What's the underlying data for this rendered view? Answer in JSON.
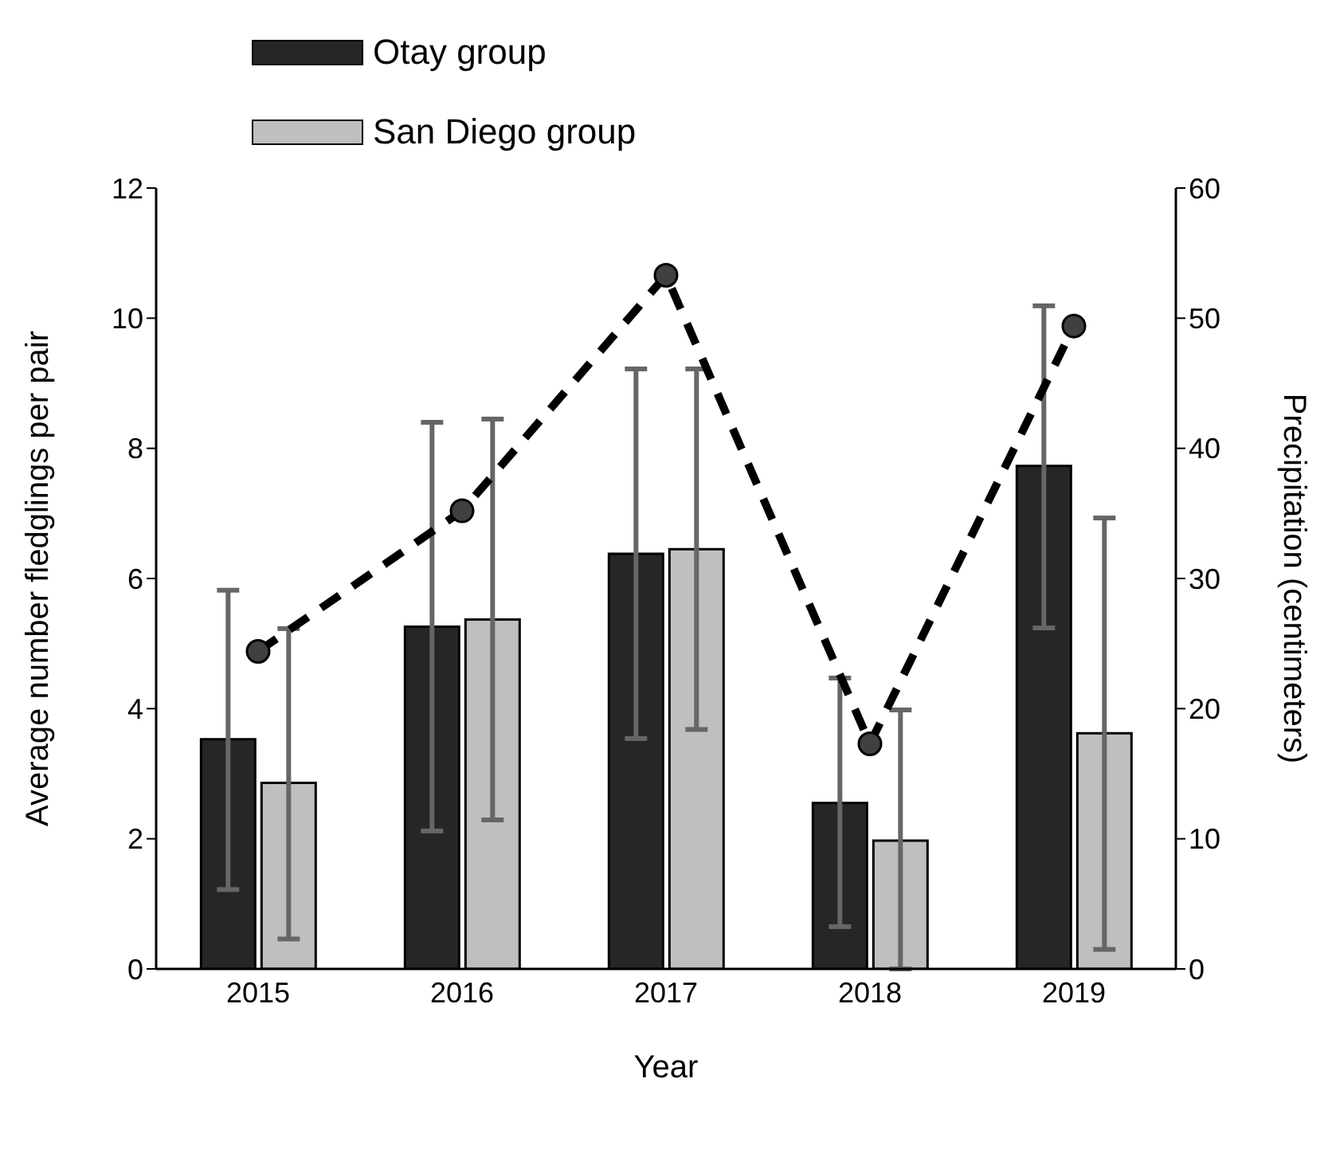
{
  "chart_data": {
    "type": "bar",
    "xlabel": "Year",
    "ylabel": "Average number fledglings per  pair",
    "y2label": "Precipitation (centimeters)",
    "categories": [
      "2015",
      "2016",
      "2017",
      "2018",
      "2019"
    ],
    "series": [
      {
        "name": "Otay group",
        "color": "#262626",
        "values": [
          3.53,
          5.26,
          6.38,
          2.55,
          7.73
        ],
        "errors": [
          [
            1.22,
            5.82
          ],
          [
            2.12,
            8.4
          ],
          [
            3.54,
            9.22
          ],
          [
            0.65,
            4.47
          ],
          [
            5.24,
            10.19
          ]
        ]
      },
      {
        "name": "San Diego group",
        "color": "#bfbfbf",
        "values": [
          2.86,
          5.37,
          6.45,
          1.97,
          3.62
        ],
        "errors": [
          [
            0.46,
            5.23
          ],
          [
            2.29,
            8.45
          ],
          [
            3.68,
            9.22
          ],
          [
            0,
            3.98
          ],
          [
            0.3,
            6.93
          ]
        ]
      },
      {
        "type": "line",
        "axis": "y2",
        "color": "#000000",
        "marker": "circle",
        "line_style": "dashed",
        "values": [
          24.4,
          35.2,
          53.3,
          17.3,
          49.4
        ]
      }
    ],
    "ylim": [
      0,
      12
    ],
    "yticks": [
      0,
      2,
      4,
      6,
      8,
      10,
      12
    ],
    "y2lim": [
      0,
      60
    ],
    "y2ticks": [
      0,
      10,
      20,
      30,
      40,
      50,
      60
    ],
    "legend": "top left"
  }
}
